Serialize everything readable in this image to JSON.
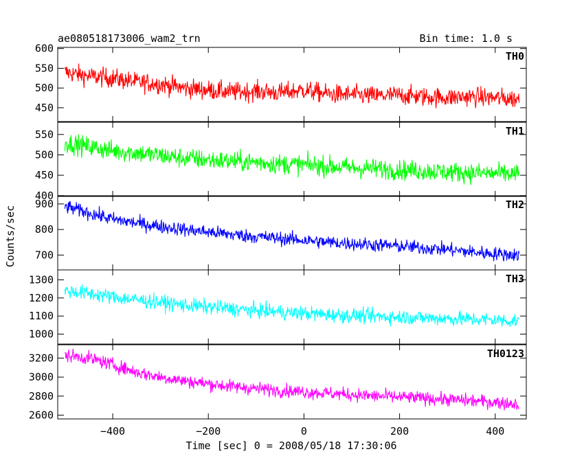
{
  "header": {
    "title": "ae080518173006_wam2_trn",
    "bin_time": "Bin time: 1.0 s"
  },
  "axes": {
    "xlabel": "Time [sec] 0 = 2008/05/18 17:30:06",
    "ylabel": "Counts/sec",
    "xlim": [
      -515,
      465
    ],
    "xticks": [
      -400,
      -200,
      0,
      200,
      400
    ],
    "xtick_labels": [
      "−400",
      "−200",
      "0",
      "200",
      "400"
    ]
  },
  "chart_data": [
    {
      "type": "line",
      "name": "TH0",
      "color": "#ff0000",
      "ylim": [
        415,
        603
      ],
      "yticks": [
        450,
        500,
        550,
        600
      ],
      "x": [
        -500,
        -450,
        -400,
        -350,
        -300,
        -250,
        -200,
        -150,
        -100,
        -50,
        0,
        50,
        100,
        150,
        200,
        250,
        300,
        350,
        400,
        450
      ],
      "y": [
        540,
        530,
        525,
        515,
        510,
        500,
        495,
        490,
        492,
        488,
        495,
        485,
        483,
        480,
        482,
        478,
        476,
        478,
        475,
        472
      ],
      "noise_amp": 42
    },
    {
      "type": "line",
      "name": "TH1",
      "color": "#00ff00",
      "ylim": [
        398,
        580
      ],
      "yticks": [
        400,
        450,
        500,
        550
      ],
      "x": [
        -500,
        -450,
        -400,
        -350,
        -300,
        -250,
        -200,
        -150,
        -100,
        -50,
        0,
        50,
        100,
        150,
        200,
        250,
        300,
        350,
        400,
        450
      ],
      "y": [
        530,
        520,
        510,
        505,
        498,
        492,
        488,
        484,
        482,
        478,
        476,
        472,
        468,
        466,
        463,
        461,
        458,
        456,
        454,
        452
      ],
      "noise_amp": 42
    },
    {
      "type": "line",
      "name": "TH2",
      "color": "#0000ff",
      "ylim": [
        642,
        932
      ],
      "yticks": [
        700,
        800,
        900
      ],
      "x": [
        -500,
        -450,
        -400,
        -350,
        -300,
        -250,
        -200,
        -150,
        -100,
        -50,
        0,
        50,
        100,
        150,
        200,
        250,
        300,
        350,
        400,
        450
      ],
      "y": [
        890,
        865,
        840,
        825,
        812,
        800,
        790,
        780,
        772,
        765,
        758,
        750,
        745,
        740,
        735,
        728,
        722,
        712,
        705,
        700
      ],
      "noise_amp": 46
    },
    {
      "type": "line",
      "name": "TH3",
      "color": "#00ffff",
      "ylim": [
        945,
        1355
      ],
      "yticks": [
        1000,
        1100,
        1200,
        1300
      ],
      "x": [
        -500,
        -450,
        -400,
        -350,
        -300,
        -250,
        -200,
        -150,
        -100,
        -50,
        0,
        50,
        100,
        150,
        200,
        250,
        300,
        350,
        400,
        450
      ],
      "y": [
        1240,
        1225,
        1205,
        1190,
        1175,
        1160,
        1150,
        1140,
        1130,
        1122,
        1115,
        1108,
        1102,
        1098,
        1095,
        1090,
        1086,
        1082,
        1078,
        1072
      ],
      "noise_amp": 70
    },
    {
      "type": "line",
      "name": "TH0123",
      "color": "#ff00ff",
      "ylim": [
        2560,
        3340
      ],
      "yticks": [
        2600,
        2800,
        3000,
        3200
      ],
      "x": [
        -500,
        -450,
        -400,
        -350,
        -300,
        -250,
        -200,
        -150,
        -100,
        -50,
        0,
        50,
        100,
        150,
        200,
        250,
        300,
        350,
        400,
        450
      ],
      "y": [
        3230,
        3200,
        3130,
        3050,
        3000,
        2960,
        2930,
        2900,
        2880,
        2860,
        2845,
        2830,
        2815,
        2800,
        2790,
        2778,
        2765,
        2752,
        2735,
        2715
      ],
      "noise_amp": 120
    }
  ]
}
